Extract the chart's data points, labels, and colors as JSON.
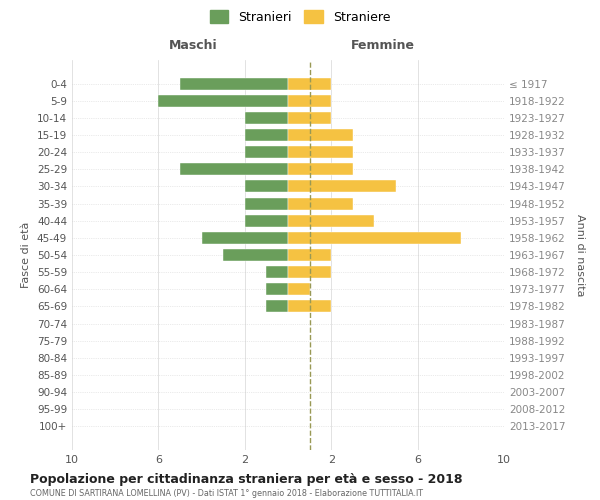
{
  "age_groups": [
    "0-4",
    "5-9",
    "10-14",
    "15-19",
    "20-24",
    "25-29",
    "30-34",
    "35-39",
    "40-44",
    "45-49",
    "50-54",
    "55-59",
    "60-64",
    "65-69",
    "70-74",
    "75-79",
    "80-84",
    "85-89",
    "90-94",
    "95-99",
    "100+"
  ],
  "birth_years": [
    "2013-2017",
    "2008-2012",
    "2003-2007",
    "1998-2002",
    "1993-1997",
    "1988-1992",
    "1983-1987",
    "1978-1982",
    "1973-1977",
    "1968-1972",
    "1963-1967",
    "1958-1962",
    "1953-1957",
    "1948-1952",
    "1943-1947",
    "1938-1942",
    "1933-1937",
    "1928-1932",
    "1923-1927",
    "1918-1922",
    "≤ 1917"
  ],
  "stranieri": [
    5,
    6,
    2,
    2,
    2,
    5,
    2,
    2,
    2,
    4,
    3,
    1,
    1,
    1,
    0,
    0,
    0,
    0,
    0,
    0,
    0
  ],
  "straniere": [
    2,
    2,
    2,
    3,
    3,
    3,
    5,
    3,
    4,
    8,
    2,
    2,
    1,
    2,
    0,
    0,
    0,
    0,
    0,
    0,
    0
  ],
  "color_stranieri": "#6a9e5b",
  "color_straniere": "#f5c242",
  "xlabel_left": "Maschi",
  "xlabel_right": "Femmine",
  "ylabel_left": "Fasce di età",
  "ylabel_right": "Anni di nascita",
  "title": "Popolazione per cittadinanza straniera per età e sesso - 2018",
  "subtitle": "COMUNE DI SARTIRANA LOMELLINA (PV) - Dati ISTAT 1° gennaio 2018 - Elaborazione TUTTITALIA.IT",
  "legend_stranieri": "Stranieri",
  "legend_straniere": "Straniere",
  "xlim": 10,
  "background_color": "#ffffff",
  "grid_color": "#cccccc"
}
